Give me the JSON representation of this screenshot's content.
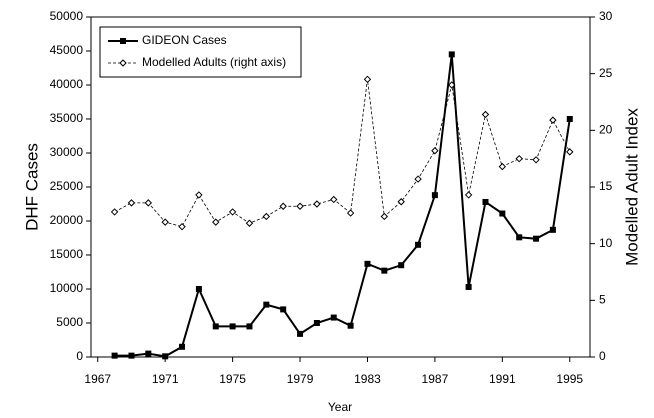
{
  "chart_data": {
    "type": "line",
    "x_label": "Year",
    "y_label": "DHF Cases",
    "y2_label": "Modelled Adult Index",
    "x": [
      1968,
      1969,
      1970,
      1971,
      1972,
      1973,
      1974,
      1975,
      1976,
      1977,
      1978,
      1979,
      1980,
      1981,
      1982,
      1983,
      1984,
      1985,
      1986,
      1987,
      1988,
      1989,
      1990,
      1991,
      1992,
      1993,
      1994,
      1995
    ],
    "series": [
      {
        "name": "GIDEON Cases",
        "color": "#000000",
        "marker": "square",
        "dash": false,
        "values": [
          200,
          200,
          500,
          100,
          1500,
          10000,
          4500,
          4500,
          4500,
          7700,
          7000,
          3400,
          5000,
          5800,
          4600,
          13700,
          12700,
          13500,
          16500,
          23800,
          44500,
          10300,
          22800,
          21100,
          17600,
          17400,
          18700,
          35000
        ]
      },
      {
        "name": "Modelled Adults (right axis)",
        "color": "#000000",
        "marker": "diamond",
        "dash": true,
        "axis": "y2",
        "values": [
          12.8,
          13.6,
          13.6,
          11.9,
          11.5,
          14.3,
          11.9,
          12.8,
          11.8,
          12.4,
          13.3,
          13.3,
          13.5,
          13.9,
          12.7,
          24.5,
          12.4,
          13.7,
          15.7,
          18.2,
          24.0,
          14.3,
          21.4,
          16.8,
          17.5,
          17.4,
          20.9,
          18.1
        ]
      }
    ],
    "xlim": [
      1966.6,
      1996.2
    ],
    "xticks": [
      1967,
      1971,
      1975,
      1979,
      1983,
      1987,
      1991,
      1995
    ],
    "ylim": [
      0,
      50000
    ],
    "yticks": [
      0,
      5000,
      10000,
      15000,
      20000,
      25000,
      30000,
      35000,
      40000,
      45000,
      50000
    ],
    "y2lim": [
      0,
      30
    ],
    "y2ticks": [
      0,
      5,
      10,
      15,
      20,
      25,
      30
    ],
    "legend": "upper left"
  }
}
